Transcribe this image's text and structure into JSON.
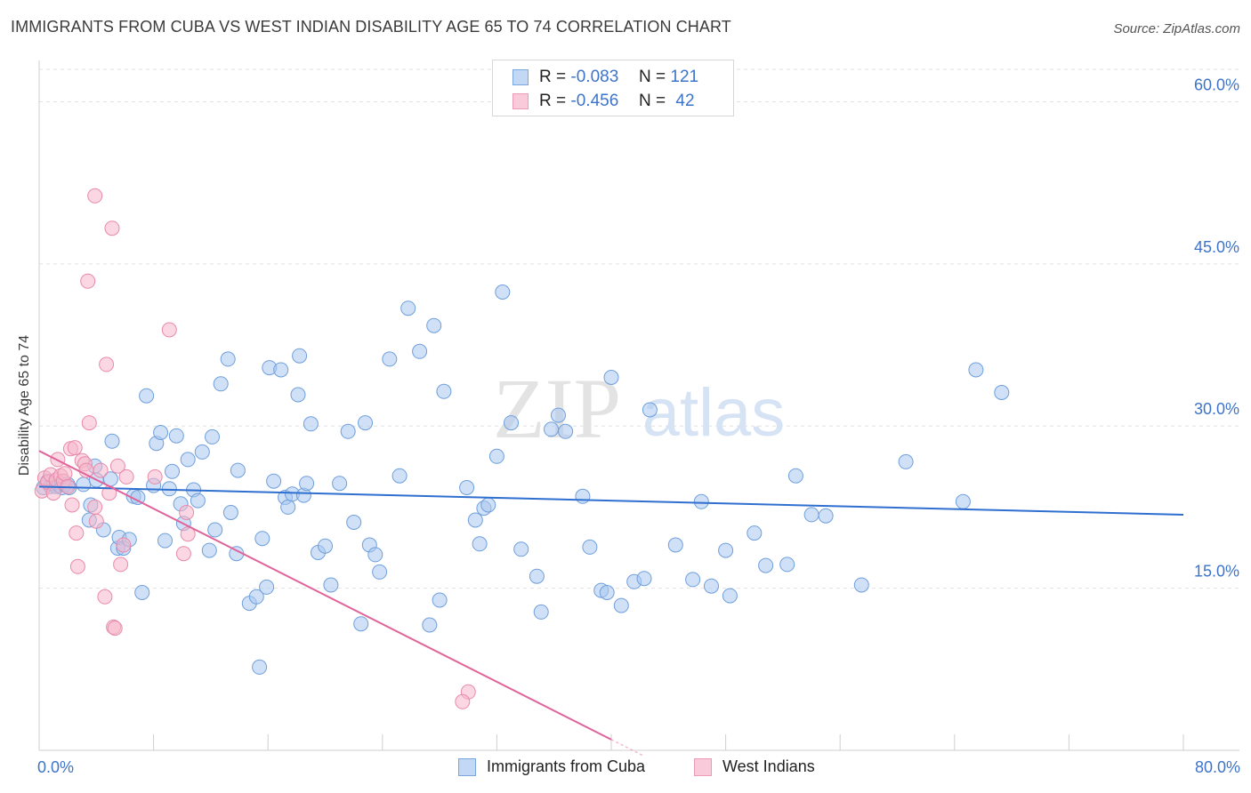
{
  "title": "IMMIGRANTS FROM CUBA VS WEST INDIAN DISABILITY AGE 65 TO 74 CORRELATION CHART",
  "source": "Source: ZipAtlas.com",
  "watermark": {
    "zip": "ZIP",
    "atlas": "atlas"
  },
  "legend": {
    "rows": [
      {
        "r_label": "R =",
        "r_value": "-0.083",
        "n_label": "N =",
        "n_value": "121",
        "color": "#a9c8f0"
      },
      {
        "r_label": "R =",
        "r_value": "-0.456",
        "n_label": "N =",
        "n_value": "42",
        "color": "#f6b6cb"
      }
    ]
  },
  "chart_data": {
    "type": "scatter",
    "title": "IMMIGRANTS FROM CUBA VS WEST INDIAN DISABILITY AGE 65 TO 74 CORRELATION CHART",
    "xlabel": "",
    "ylabel": "Disability Age 65 to 74",
    "xlim": [
      0,
      80
    ],
    "ylim": [
      0,
      63
    ],
    "x_tick_labels": [
      "0.0%",
      "80.0%"
    ],
    "y_ticks": [
      15,
      30,
      45,
      60
    ],
    "y_tick_labels": [
      "15.0%",
      "30.0%",
      "45.0%",
      "60.0%"
    ],
    "grid": "horizontal dashed",
    "legend_position": "top-center",
    "series": [
      {
        "name": "Immigrants from Cuba",
        "color": "#a9c8f0",
        "stroke": "#6f9fdc",
        "trend_color": "#2f6fcf",
        "trend": [
          [
            0,
            24.4
          ],
          [
            80,
            21.8
          ]
        ],
        "points": [
          [
            0.3,
            24.3
          ],
          [
            0.6,
            24.9
          ],
          [
            0.8,
            24.4
          ],
          [
            1.0,
            24.7
          ],
          [
            1.2,
            24.4
          ],
          [
            1.4,
            24.5
          ],
          [
            1.6,
            24.3
          ],
          [
            1.8,
            24.6
          ],
          [
            2.0,
            24.6
          ],
          [
            2.1,
            24.3
          ],
          [
            3.1,
            24.6
          ],
          [
            3.9,
            26.3
          ],
          [
            4.0,
            25.0
          ],
          [
            3.5,
            21.3
          ],
          [
            3.6,
            22.7
          ],
          [
            4.5,
            20.4
          ],
          [
            5.1,
            28.6
          ],
          [
            5.0,
            25.1
          ],
          [
            5.5,
            18.7
          ],
          [
            5.6,
            19.7
          ],
          [
            5.9,
            18.7
          ],
          [
            6.3,
            19.5
          ],
          [
            6.6,
            23.5
          ],
          [
            6.9,
            23.4
          ],
          [
            7.2,
            14.6
          ],
          [
            7.5,
            32.8
          ],
          [
            8.0,
            24.5
          ],
          [
            8.2,
            28.4
          ],
          [
            8.5,
            29.4
          ],
          [
            8.8,
            19.4
          ],
          [
            9.1,
            24.2
          ],
          [
            9.3,
            25.8
          ],
          [
            9.6,
            29.1
          ],
          [
            9.9,
            22.8
          ],
          [
            10.1,
            21.0
          ],
          [
            10.4,
            26.9
          ],
          [
            10.8,
            24.1
          ],
          [
            11.1,
            23.1
          ],
          [
            11.4,
            27.6
          ],
          [
            11.9,
            18.5
          ],
          [
            12.1,
            29.0
          ],
          [
            12.3,
            20.4
          ],
          [
            12.7,
            33.9
          ],
          [
            13.2,
            36.2
          ],
          [
            13.4,
            22.0
          ],
          [
            13.8,
            18.2
          ],
          [
            13.9,
            25.9
          ],
          [
            14.7,
            13.6
          ],
          [
            15.2,
            14.2
          ],
          [
            15.4,
            7.7
          ],
          [
            15.6,
            19.6
          ],
          [
            15.9,
            15.1
          ],
          [
            16.1,
            35.4
          ],
          [
            16.4,
            24.9
          ],
          [
            16.9,
            35.2
          ],
          [
            17.2,
            23.4
          ],
          [
            17.4,
            22.5
          ],
          [
            17.7,
            23.7
          ],
          [
            18.1,
            32.9
          ],
          [
            18.2,
            36.5
          ],
          [
            18.5,
            23.6
          ],
          [
            18.7,
            24.7
          ],
          [
            19.0,
            30.2
          ],
          [
            19.5,
            18.3
          ],
          [
            20.0,
            18.9
          ],
          [
            20.4,
            15.3
          ],
          [
            21.0,
            24.7
          ],
          [
            21.6,
            29.5
          ],
          [
            22.0,
            21.1
          ],
          [
            22.5,
            11.7
          ],
          [
            22.8,
            30.3
          ],
          [
            23.1,
            19.0
          ],
          [
            23.5,
            18.1
          ],
          [
            23.8,
            16.5
          ],
          [
            24.5,
            36.2
          ],
          [
            25.2,
            25.4
          ],
          [
            25.8,
            40.9
          ],
          [
            26.6,
            36.9
          ],
          [
            27.3,
            11.6
          ],
          [
            27.6,
            39.3
          ],
          [
            28.0,
            13.9
          ],
          [
            28.3,
            33.2
          ],
          [
            29.9,
            24.3
          ],
          [
            30.5,
            21.3
          ],
          [
            30.8,
            19.1
          ],
          [
            31.1,
            22.4
          ],
          [
            31.4,
            22.7
          ],
          [
            32.0,
            27.2
          ],
          [
            32.4,
            42.4
          ],
          [
            33.0,
            30.3
          ],
          [
            33.7,
            18.6
          ],
          [
            34.8,
            16.1
          ],
          [
            35.1,
            12.8
          ],
          [
            35.8,
            29.7
          ],
          [
            36.3,
            31.0
          ],
          [
            36.8,
            29.5
          ],
          [
            38.0,
            23.5
          ],
          [
            38.5,
            18.8
          ],
          [
            39.3,
            14.8
          ],
          [
            39.7,
            14.6
          ],
          [
            40.0,
            34.5
          ],
          [
            40.7,
            13.4
          ],
          [
            41.6,
            15.6
          ],
          [
            42.3,
            15.9
          ],
          [
            42.7,
            31.5
          ],
          [
            44.5,
            19.0
          ],
          [
            45.7,
            15.8
          ],
          [
            46.3,
            23.0
          ],
          [
            47.0,
            15.2
          ],
          [
            48.0,
            18.5
          ],
          [
            48.3,
            14.3
          ],
          [
            50.0,
            20.1
          ],
          [
            50.8,
            17.1
          ],
          [
            52.3,
            17.2
          ],
          [
            52.9,
            25.4
          ],
          [
            54.0,
            21.8
          ],
          [
            55.0,
            21.7
          ],
          [
            57.5,
            15.3
          ],
          [
            60.6,
            26.7
          ],
          [
            64.6,
            23.0
          ],
          [
            65.5,
            35.2
          ],
          [
            67.3,
            33.1
          ]
        ]
      },
      {
        "name": "West Indians",
        "color": "#f6b6cb",
        "stroke": "#e98aaa",
        "trend_color": "#e0649a",
        "trend": [
          [
            0,
            27.7
          ],
          [
            40,
            1.0
          ]
        ],
        "points": [
          [
            0.2,
            24.0
          ],
          [
            0.4,
            25.2
          ],
          [
            0.6,
            24.8
          ],
          [
            0.8,
            25.5
          ],
          [
            1.0,
            23.8
          ],
          [
            1.2,
            25.0
          ],
          [
            1.3,
            26.9
          ],
          [
            1.5,
            25.4
          ],
          [
            1.7,
            24.9
          ],
          [
            1.8,
            25.6
          ],
          [
            2.0,
            24.4
          ],
          [
            2.2,
            27.9
          ],
          [
            2.5,
            28.0
          ],
          [
            2.3,
            22.7
          ],
          [
            2.6,
            20.1
          ],
          [
            2.7,
            17.0
          ],
          [
            3.0,
            26.8
          ],
          [
            3.2,
            26.5
          ],
          [
            3.3,
            25.9
          ],
          [
            3.5,
            30.3
          ],
          [
            3.4,
            43.4
          ],
          [
            3.9,
            22.5
          ],
          [
            4.0,
            21.2
          ],
          [
            4.3,
            25.9
          ],
          [
            4.6,
            14.2
          ],
          [
            4.7,
            35.7
          ],
          [
            4.9,
            23.8
          ],
          [
            5.1,
            48.3
          ],
          [
            5.2,
            11.4
          ],
          [
            5.3,
            11.3
          ],
          [
            5.5,
            26.3
          ],
          [
            5.7,
            17.2
          ],
          [
            5.9,
            19.0
          ],
          [
            6.1,
            25.3
          ],
          [
            3.9,
            51.3
          ],
          [
            8.1,
            25.3
          ],
          [
            9.1,
            38.9
          ],
          [
            10.1,
            18.2
          ],
          [
            10.3,
            22.0
          ],
          [
            10.4,
            20.0
          ],
          [
            30.0,
            5.4
          ],
          [
            29.6,
            4.5
          ]
        ]
      }
    ]
  },
  "bottom_legend": [
    "Immigrants from Cuba",
    "West Indians"
  ]
}
